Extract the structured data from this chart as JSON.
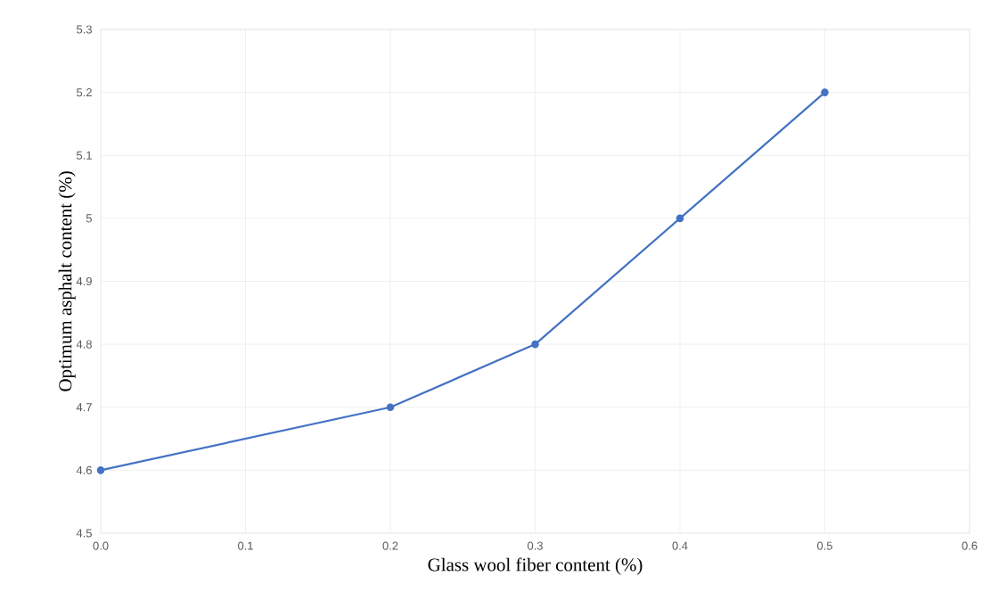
{
  "chart_data": {
    "type": "line",
    "xlabel": "Glass wool fiber content (%)",
    "ylabel": "Optimum asphalt content (%)",
    "x": [
      0.0,
      0.2,
      0.3,
      0.4,
      0.5
    ],
    "series": [
      {
        "color": "#4472c4",
        "values": [
          4.6,
          4.7,
          4.8,
          5.0,
          5.2
        ]
      }
    ],
    "xlim": [
      0,
      0.6
    ],
    "xticks": [
      {
        "value": 0,
        "label": "0.0"
      },
      {
        "value": 0.1,
        "label": "0.1"
      },
      {
        "value": 0.2,
        "label": "0.2"
      },
      {
        "value": 0.3,
        "label": "0.3"
      },
      {
        "value": 0.4,
        "label": "0.4"
      },
      {
        "value": 0.5,
        "label": "0.5"
      },
      {
        "value": 0.6,
        "label": "0.6"
      }
    ],
    "ylim": [
      4.5,
      5.3
    ],
    "yticks": [
      4.5,
      4.6,
      4.7,
      4.8,
      4.9,
      5,
      5.1,
      5.2,
      5.3
    ],
    "grid": true,
    "marker": "circle",
    "line_style": "solid",
    "legend": false
  }
}
